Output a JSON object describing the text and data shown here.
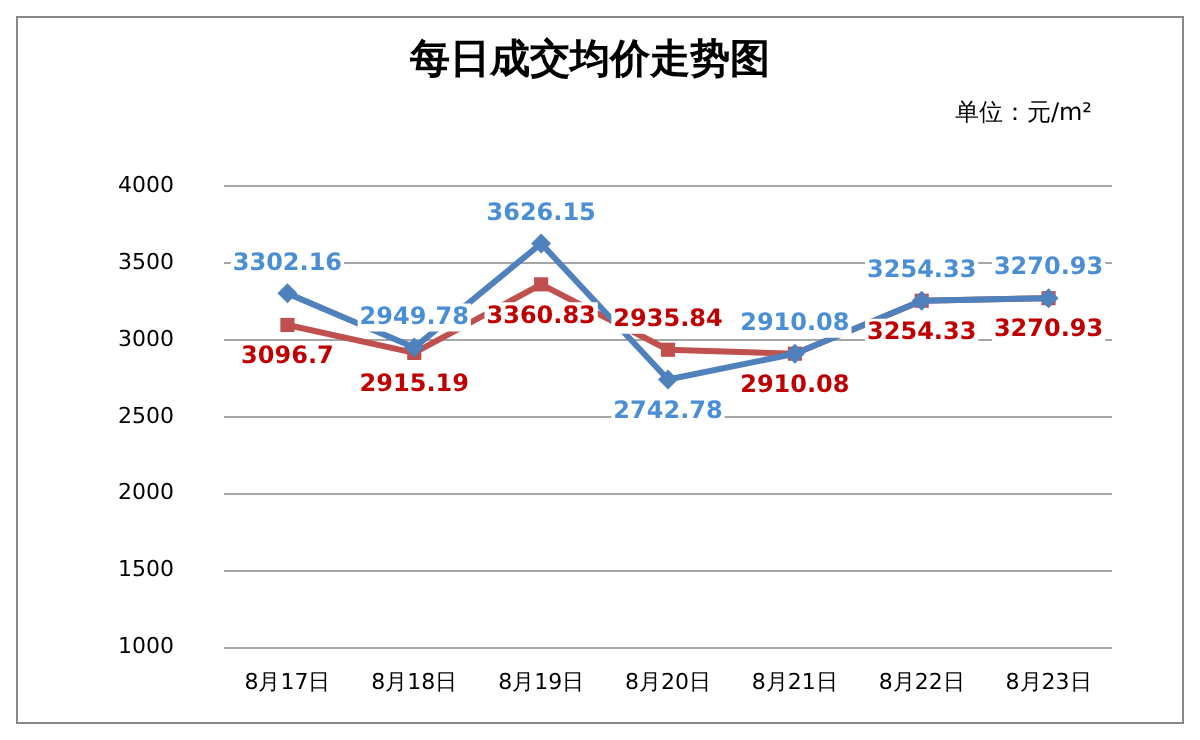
{
  "chart_data": {
    "type": "line",
    "title": "每日成交均价走势图",
    "annotations": [
      "单位：元/m²"
    ],
    "categories": [
      "8月17日",
      "8月18日",
      "8月19日",
      "8月20日",
      "8月21日",
      "8月22日",
      "8月23日"
    ],
    "series": [
      {
        "color": "#4f81bd",
        "marker": "diamond",
        "values": [
          3302.16,
          2949.78,
          3626.15,
          2742.78,
          2910.08,
          3254.33,
          3270.93
        ]
      },
      {
        "color": "#c0504d",
        "marker": "square",
        "values": [
          3096.7,
          2915.19,
          3360.83,
          2935.84,
          2910.08,
          3254.33,
          3270.93
        ]
      }
    ],
    "ylim": [
      1000,
      4000
    ],
    "yticks": [
      1000,
      1500,
      2000,
      2500,
      3000,
      3500,
      4000
    ],
    "grid": "y",
    "legend": false,
    "data_labels": true,
    "line_style": "solid"
  }
}
